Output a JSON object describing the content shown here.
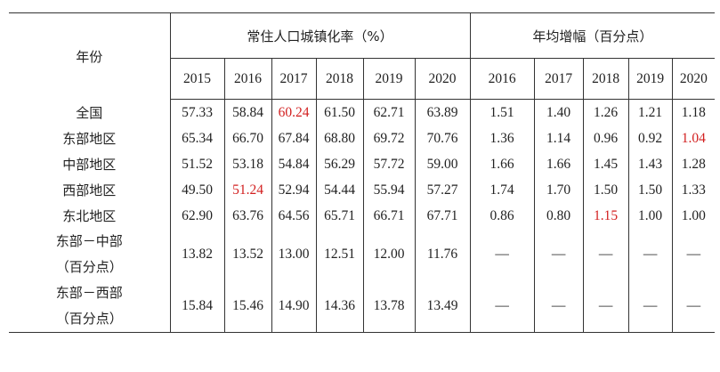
{
  "header": {
    "group_label": "年份",
    "urbanization_title": "常住人口城镇化率（%）",
    "growth_title": "年均增幅（百分点）",
    "urbanization_years": [
      "2015",
      "2016",
      "2017",
      "2018",
      "2019",
      "2020"
    ],
    "growth_years": [
      "2016",
      "2017",
      "2018",
      "2019",
      "2020"
    ]
  },
  "rows": [
    {
      "label": "全国",
      "rate": [
        "57.33",
        "58.84",
        "60.24",
        "61.50",
        "62.71",
        "63.89"
      ],
      "growth": [
        "1.51",
        "1.40",
        "1.26",
        "1.21",
        "1.18"
      ]
    },
    {
      "label": "东部地区",
      "rate": [
        "65.34",
        "66.70",
        "67.84",
        "68.80",
        "69.72",
        "70.76"
      ],
      "growth": [
        "1.36",
        "1.14",
        "0.96",
        "0.92",
        "1.04"
      ]
    },
    {
      "label": "中部地区",
      "rate": [
        "51.52",
        "53.18",
        "54.84",
        "56.29",
        "57.72",
        "59.00"
      ],
      "growth": [
        "1.66",
        "1.66",
        "1.45",
        "1.43",
        "1.28"
      ]
    },
    {
      "label": "西部地区",
      "rate": [
        "49.50",
        "51.24",
        "52.94",
        "54.44",
        "55.94",
        "57.27"
      ],
      "growth": [
        "1.74",
        "1.70",
        "1.50",
        "1.50",
        "1.33"
      ]
    },
    {
      "label": "东北地区",
      "rate": [
        "62.90",
        "63.76",
        "64.56",
        "65.71",
        "66.71",
        "67.71"
      ],
      "growth": [
        "0.86",
        "0.80",
        "1.15",
        "1.00",
        "1.00"
      ]
    }
  ],
  "gap_rows": [
    {
      "label_line1": "东部－中部",
      "label_line2": "（百分点）",
      "rate": [
        "13.82",
        "13.52",
        "13.00",
        "12.51",
        "12.00",
        "11.76"
      ],
      "growth": [
        "—",
        "—",
        "—",
        "—",
        "—"
      ]
    },
    {
      "label_line1": "东部－西部",
      "label_line2": "（百分点）",
      "rate": [
        "15.84",
        "15.46",
        "14.90",
        "14.36",
        "13.78",
        "13.49"
      ],
      "growth": [
        "—",
        "—",
        "—",
        "—",
        "—"
      ]
    }
  ],
  "highlight_color": "#d21f1f"
}
